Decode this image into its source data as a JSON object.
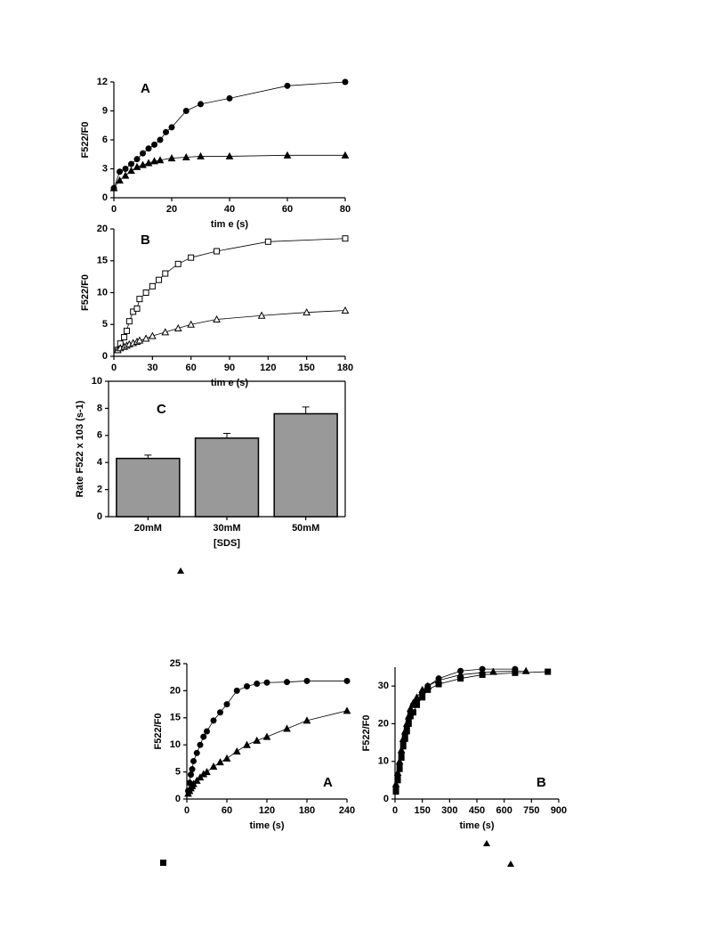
{
  "chart_data": [
    {
      "type": "scatter",
      "annotation": "A",
      "xlabel": "tim e (s)",
      "ylabel": "F522/F0",
      "xlim": [
        0,
        80
      ],
      "xticks": [
        0,
        20,
        40,
        60,
        80
      ],
      "ylim": [
        0,
        12
      ],
      "yticks": [
        0,
        3,
        6,
        9,
        12
      ],
      "series": [
        {
          "marker": "circle",
          "filled": true,
          "color": "#000000",
          "x": [
            0,
            2,
            4,
            6,
            8,
            10,
            12,
            14,
            16,
            18,
            20,
            25,
            30,
            40,
            60,
            80
          ],
          "values": [
            1.0,
            2.7,
            3.0,
            3.5,
            4.0,
            4.6,
            5.1,
            5.5,
            6.0,
            6.8,
            7.3,
            9.0,
            9.7,
            10.3,
            11.6,
            12.0
          ]
        },
        {
          "marker": "triangle",
          "filled": true,
          "color": "#000000",
          "x": [
            0,
            2,
            4,
            6,
            8,
            10,
            12,
            14,
            16,
            20,
            25,
            30,
            40,
            60,
            80
          ],
          "values": [
            1.0,
            1.8,
            2.3,
            2.8,
            3.2,
            3.4,
            3.6,
            3.8,
            3.9,
            4.1,
            4.2,
            4.3,
            4.3,
            4.4,
            4.4
          ]
        }
      ]
    },
    {
      "type": "scatter",
      "annotation": "B",
      "xlabel": "tim e (s)",
      "ylabel": "F522/F0",
      "xlim": [
        0,
        180
      ],
      "xticks": [
        0,
        30,
        60,
        90,
        120,
        150,
        180
      ],
      "ylim": [
        0,
        20
      ],
      "yticks": [
        0,
        5,
        10,
        15,
        20
      ],
      "series": [
        {
          "marker": "square",
          "filled": false,
          "color": "#000000",
          "x": [
            3,
            5,
            8,
            10,
            12,
            15,
            18,
            20,
            25,
            30,
            35,
            40,
            50,
            60,
            80,
            120,
            180
          ],
          "values": [
            1.0,
            2.0,
            3.0,
            4.0,
            5.5,
            7.0,
            7.5,
            9.0,
            10.0,
            11.0,
            12.0,
            13.0,
            14.5,
            15.5,
            16.5,
            18.0,
            18.5
          ]
        },
        {
          "marker": "triangle",
          "filled": false,
          "color": "#000000",
          "x": [
            3,
            5,
            8,
            10,
            12,
            15,
            18,
            20,
            25,
            30,
            40,
            50,
            60,
            80,
            115,
            150,
            180
          ],
          "values": [
            1.0,
            1.3,
            1.5,
            1.7,
            1.9,
            2.1,
            2.3,
            2.5,
            2.8,
            3.2,
            3.8,
            4.4,
            5.0,
            5.8,
            6.4,
            6.9,
            7.2
          ]
        }
      ]
    },
    {
      "type": "bar",
      "annotation": "C",
      "xlabel": "[SDS]",
      "ylabel": "Rate F522 x 103 (s-1)",
      "categories": [
        "20mM",
        "30mM",
        "50mM"
      ],
      "values": [
        4.3,
        5.8,
        7.6
      ],
      "errors": [
        0.25,
        0.35,
        0.5
      ],
      "color": "#999999",
      "ylim": [
        0,
        10
      ],
      "yticks": [
        0,
        2,
        4,
        6,
        8,
        10
      ]
    },
    {
      "type": "scatter",
      "annotation": "A",
      "xlabel": "time (s)",
      "ylabel": "F522/F0",
      "xlim": [
        0,
        240
      ],
      "xticks": [
        0,
        60,
        120,
        180,
        240
      ],
      "ylim": [
        0,
        25
      ],
      "yticks": [
        0,
        5,
        10,
        15,
        20,
        25
      ],
      "series": [
        {
          "marker": "circle",
          "filled": true,
          "color": "#000000",
          "x": [
            2,
            4,
            6,
            8,
            10,
            15,
            20,
            25,
            30,
            40,
            50,
            60,
            75,
            90,
            105,
            120,
            150,
            180,
            240
          ],
          "values": [
            1.5,
            3,
            4.5,
            5.5,
            7,
            8.5,
            10,
            11.5,
            12.5,
            14.5,
            16,
            17.5,
            20,
            20.8,
            21.3,
            21.5,
            21.6,
            21.8,
            21.8
          ]
        },
        {
          "marker": "triangle",
          "filled": true,
          "color": "#000000",
          "x": [
            2,
            4,
            6,
            8,
            10,
            15,
            20,
            25,
            30,
            40,
            50,
            60,
            75,
            90,
            105,
            120,
            150,
            180,
            240
          ],
          "values": [
            1,
            1.5,
            2,
            2.4,
            2.8,
            3.4,
            4,
            4.6,
            5,
            6,
            6.8,
            7.5,
            8.8,
            10,
            10.8,
            11.5,
            13,
            14.5,
            16.3
          ]
        }
      ]
    },
    {
      "type": "scatter",
      "annotation": "B",
      "xlabel": "time (s)",
      "ylabel": "F522/F0",
      "xlim": [
        0,
        900
      ],
      "xticks": [
        0,
        150,
        300,
        450,
        600,
        750,
        900
      ],
      "ylim": [
        0,
        35
      ],
      "yticks": [
        0,
        10,
        20,
        30
      ],
      "series": [
        {
          "marker": "circle",
          "filled": true,
          "color": "#000000",
          "x": [
            5,
            15,
            25,
            35,
            45,
            55,
            65,
            75,
            85,
            100,
            120,
            150,
            180,
            240,
            360,
            480,
            660
          ],
          "values": [
            3,
            6,
            9,
            12,
            15,
            17,
            19,
            21,
            23,
            25,
            26,
            28,
            30,
            32,
            34,
            34.5,
            34.5
          ]
        },
        {
          "marker": "square",
          "filled": true,
          "color": "#000000",
          "x": [
            5,
            15,
            25,
            35,
            45,
            55,
            65,
            75,
            85,
            100,
            120,
            150,
            180,
            240,
            360,
            480,
            660,
            840
          ],
          "values": [
            2,
            5,
            8,
            11,
            14,
            16,
            18,
            20,
            22,
            23,
            25,
            27,
            29,
            30.5,
            32,
            33,
            33.5,
            33.8
          ]
        },
        {
          "marker": "triangle",
          "filled": true,
          "color": "#000000",
          "x": [
            5,
            15,
            25,
            35,
            45,
            55,
            65,
            75,
            85,
            100,
            120,
            150,
            180,
            240,
            360,
            540,
            720
          ],
          "values": [
            4,
            7,
            10,
            13,
            16,
            18,
            20,
            22,
            24,
            25.5,
            27,
            29,
            30,
            31.5,
            33,
            33.8,
            34
          ]
        }
      ]
    }
  ]
}
